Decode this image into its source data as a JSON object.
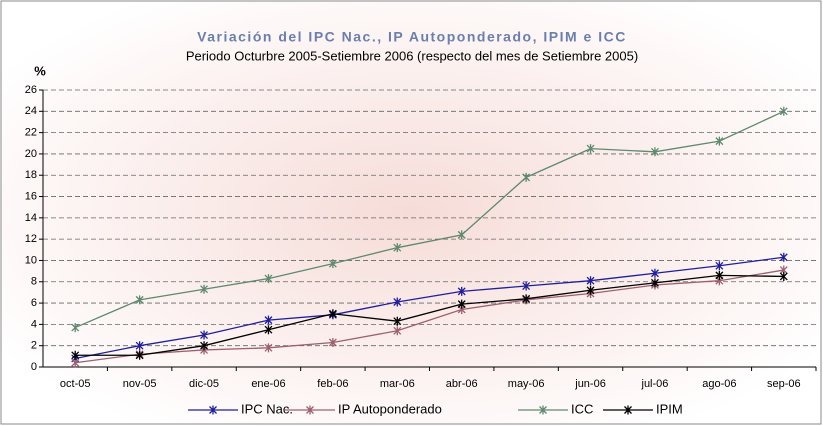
{
  "chart_data": {
    "type": "line",
    "title": "Variación del IPC Nac., IP Autoponderado, IPIM e ICC",
    "subtitle": "Periodo Octurbre 2005-Setiembre 2006 (respecto del mes de Setiembre 2005)",
    "y_label": "%",
    "categories": [
      "oct-05",
      "nov-05",
      "dic-05",
      "ene-06",
      "feb-06",
      "mar-06",
      "abr-06",
      "may-06",
      "jun-06",
      "jul-06",
      "ago-06",
      "sep-06"
    ],
    "series": [
      {
        "name": "IPC Nac.",
        "color": "#1f1f9e",
        "values": [
          0.8,
          2.0,
          3.0,
          4.4,
          4.9,
          6.1,
          7.1,
          7.6,
          8.1,
          8.8,
          9.5,
          10.3
        ]
      },
      {
        "name": "IP Autoponderado",
        "color": "#9e6070",
        "values": [
          0.4,
          1.2,
          1.6,
          1.8,
          2.3,
          3.4,
          5.4,
          6.3,
          6.9,
          7.7,
          8.1,
          9.1
        ]
      },
      {
        "name": "ICC",
        "color": "#5e8a6e",
        "values": [
          3.7,
          6.3,
          7.3,
          8.3,
          9.7,
          11.2,
          12.4,
          17.8,
          20.5,
          20.2,
          21.2,
          24.0
        ]
      },
      {
        "name": "IPIM",
        "color": "#000000",
        "values": [
          1.1,
          1.1,
          2.0,
          3.5,
          5.0,
          4.3,
          5.9,
          6.4,
          7.2,
          7.9,
          8.6,
          8.5
        ]
      }
    ],
    "ylim": [
      0,
      26
    ],
    "yticks": [
      0,
      2,
      4,
      6,
      8,
      10,
      12,
      14,
      16,
      18,
      20,
      22,
      24,
      26
    ],
    "grid": true,
    "legend": "bottom"
  }
}
